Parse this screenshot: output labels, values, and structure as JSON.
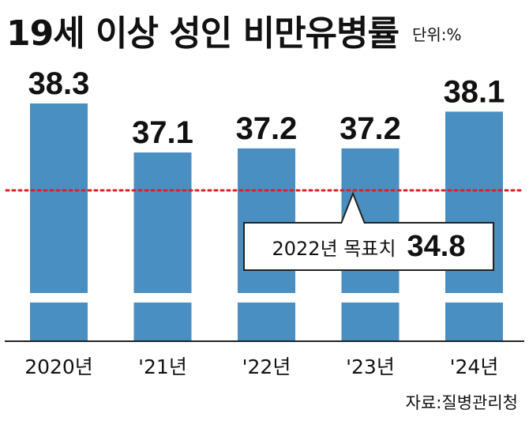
{
  "title": "19세 이상 성인 비만유병률",
  "unit_label": "단위:%",
  "source": "자료:질병관리청",
  "colors": {
    "bar": "#4a8fc1",
    "target_line": "#e01e26",
    "text": "#111111"
  },
  "annotation": {
    "label": "2022년 목표치",
    "value": "34.8"
  },
  "chart_data": {
    "type": "bar",
    "title": "19세 이상 성인 비만유병률",
    "categories": [
      "2020년",
      "'21년",
      "'22년",
      "'23년",
      "'24년"
    ],
    "values": [
      38.3,
      37.1,
      37.2,
      37.2,
      38.1
    ],
    "value_labels": [
      "38.3",
      "37.1",
      "37.2",
      "37.2",
      "38.1"
    ],
    "axis_break": true,
    "target_line": {
      "value": 34.8,
      "label": "2022년 목표치",
      "style": "dotted"
    },
    "xlabel": "",
    "ylabel": "",
    "grid": false,
    "legend": "none"
  }
}
